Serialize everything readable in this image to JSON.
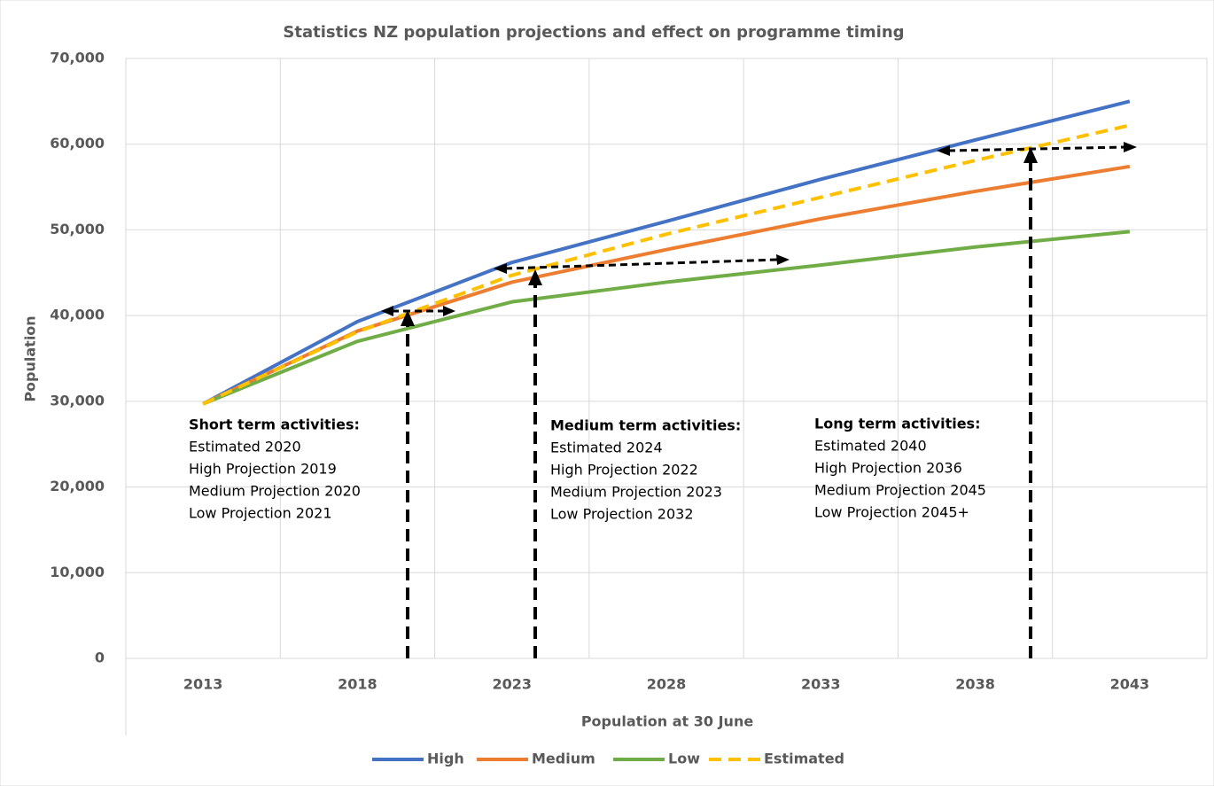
{
  "chart_data": {
    "type": "line",
    "title": "Statistics NZ population projections and effect on programme timing",
    "x_label": "Population at 30 June",
    "y_label": "Population",
    "categories": [
      "2013",
      "2018",
      "2023",
      "2028",
      "2033",
      "2038",
      "2043"
    ],
    "series": [
      {
        "name": "High",
        "color": "#4472c4",
        "dash": false,
        "values": [
          29700,
          39300,
          46200,
          51000,
          55900,
          60500,
          65000
        ]
      },
      {
        "name": "Medium",
        "color": "#ed7d31",
        "dash": false,
        "values": [
          29700,
          38200,
          43900,
          47700,
          51300,
          54500,
          57400
        ]
      },
      {
        "name": "Low",
        "color": "#70ad47",
        "dash": false,
        "values": [
          29700,
          37000,
          41600,
          43900,
          45900,
          48000,
          49800
        ]
      },
      {
        "name": "Estimated",
        "color": "#ffc000",
        "dash": true,
        "values": [
          29700,
          38100,
          44700,
          49500,
          53800,
          58100,
          62200
        ]
      }
    ],
    "ylim": [
      0,
      70000
    ],
    "yticks": [
      0,
      {
        "value": 10000,
        "label": "10,000"
      },
      {
        "value": 20000,
        "label": "20,000"
      },
      {
        "value": 30000,
        "label": "30,000"
      },
      {
        "value": 40000,
        "label": "40,000"
      },
      {
        "value": 50000,
        "label": "50,000"
      },
      {
        "value": 60000,
        "label": "60,000"
      },
      {
        "value": 70000,
        "label": "70,000"
      }
    ],
    "grid": true,
    "legend": "bottom",
    "annotations": [
      {
        "title": "Short term activities:",
        "lines": [
          "Estimated 2020",
          "High Projection 2019",
          "Medium Projection 2020",
          "Low Projection 2021"
        ]
      },
      {
        "title": "Medium term activities:",
        "lines": [
          "Estimated 2024",
          "High Projection 2022",
          "Medium Projection 2023",
          "Low Projection 2032"
        ]
      },
      {
        "title": "Long term activities:",
        "lines": [
          "Estimated 2040",
          "High Projection 2036",
          "Medium Projection 2045",
          "Low Projection 2045+"
        ]
      }
    ]
  }
}
